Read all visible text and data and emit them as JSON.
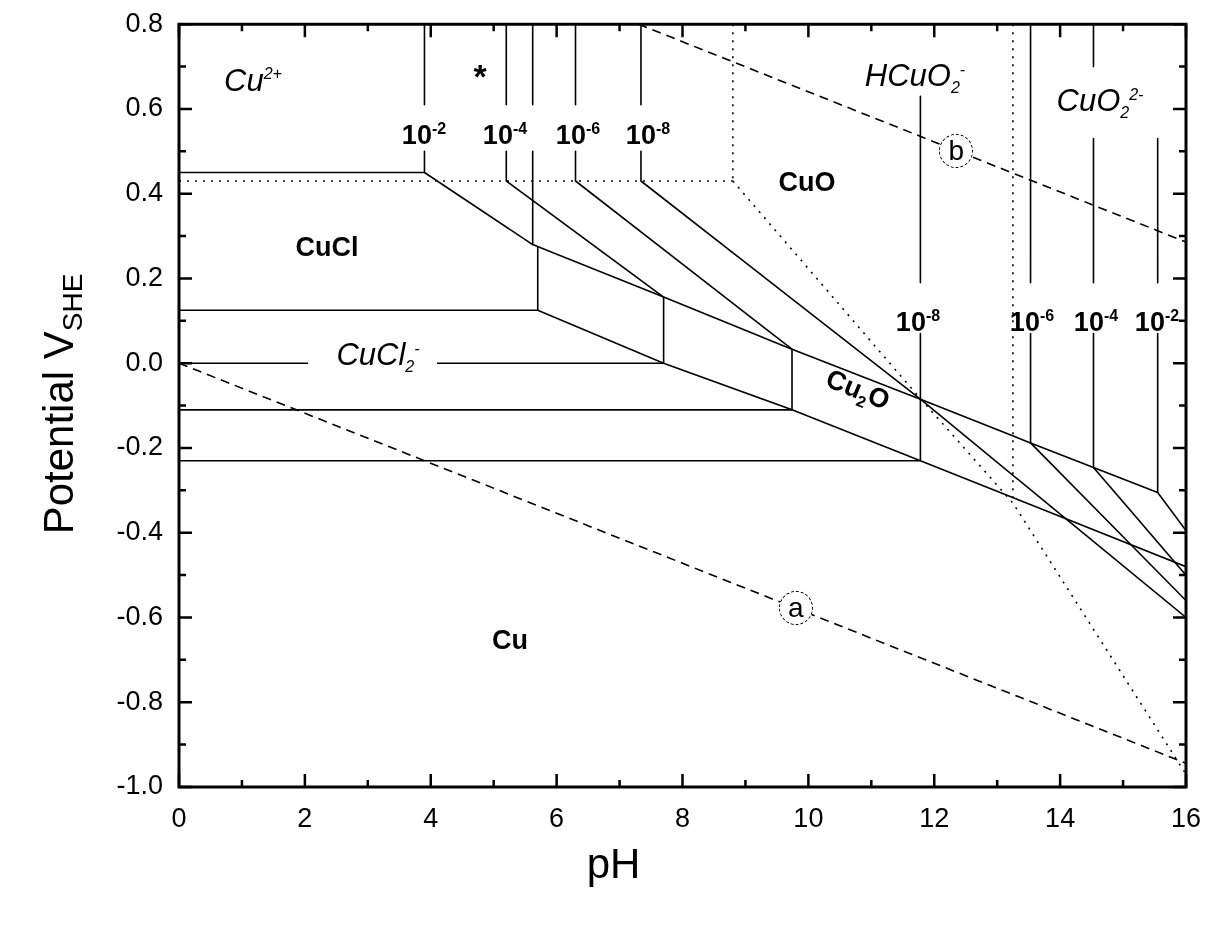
{
  "chart_data": {
    "type": "line",
    "xlabel": "pH",
    "ylabel": "Potential V$_{SHE}$",
    "xlim": [
      0,
      16
    ],
    "ylim": [
      -1.0,
      0.8
    ],
    "xticks": [
      0,
      {
        "value": 1,
        "label": null
      },
      2,
      {
        "value": 3,
        "label": null
      },
      4,
      {
        "value": 5,
        "label": null
      },
      6,
      {
        "value": 7,
        "label": null
      },
      8,
      {
        "value": 9,
        "label": null
      },
      10,
      {
        "value": 11,
        "label": null
      },
      12,
      {
        "value": 13,
        "label": null
      },
      14,
      {
        "value": 15,
        "label": null
      },
      16
    ],
    "yticks": [
      {
        "value": -1.0,
        "label": "-1.0"
      },
      {
        "value": -0.9,
        "label": null
      },
      -0.8,
      {
        "value": -0.7,
        "label": null
      },
      -0.6,
      {
        "value": -0.5,
        "label": null
      },
      -0.4,
      {
        "value": -0.3,
        "label": null
      },
      -0.2,
      {
        "value": -0.1,
        "label": null
      },
      {
        "value": 0,
        "label": "0.0"
      },
      {
        "value": 0.1,
        "label": null
      },
      0.2,
      {
        "value": 0.3,
        "label": null
      },
      0.4,
      {
        "value": 0.5,
        "label": null
      },
      0.6,
      {
        "value": 0.7,
        "label": null
      },
      0.8
    ],
    "grid": false,
    "legend": false,
    "marker": "none",
    "series": [
      {
        "color": "#000000",
        "line_style": "solid",
        "x": [
          0,
          3.9,
          5.62,
          7.7,
          9.74,
          11.78,
          13.53,
          14.53,
          15.55,
          16
        ],
        "values": [
          0.45,
          0.45,
          0.28,
          0.156,
          0.033,
          -0.085,
          -0.188,
          -0.246,
          -0.305,
          -0.395
        ]
      },
      {
        "color": "#000000",
        "line_style": "solid",
        "x": [
          0,
          5.7,
          7.7,
          9.74,
          11.78,
          16
        ],
        "values": [
          0.125,
          0.125,
          0,
          -0.11,
          -0.23,
          -0.48
        ]
      },
      {
        "color": "#000000",
        "line_style": "solid",
        "x": [
          0,
          2.05,
          null,
          4.1,
          7.7
        ],
        "values": [
          0,
          0,
          null,
          0,
          0
        ]
      },
      {
        "color": "#000000",
        "line_style": "solid",
        "x": [
          0,
          9.74
        ],
        "values": [
          -0.11,
          -0.11
        ]
      },
      {
        "color": "#000000",
        "line_style": "solid",
        "x": [
          0,
          11.78
        ],
        "values": [
          -0.23,
          -0.23
        ]
      },
      {
        "color": "#000000",
        "line_style": "solid",
        "x": [
          3.9,
          3.9,
          null,
          3.9,
          3.9
        ],
        "values": [
          0.8,
          0.61,
          null,
          0.5,
          0.45
        ]
      },
      {
        "color": "#000000",
        "line_style": "solid",
        "x": [
          5.2,
          5.2,
          null,
          5.2,
          5.2
        ],
        "values": [
          0.8,
          0.61,
          null,
          0.5,
          0.43
        ]
      },
      {
        "color": "#000000",
        "line_style": "solid",
        "x": [
          5.62,
          5.62,
          null,
          5.62,
          5.62
        ],
        "values": [
          0.8,
          0.61,
          null,
          0.5,
          0.28
        ]
      },
      {
        "color": "#000000",
        "line_style": "solid",
        "x": [
          5.7,
          5.7
        ],
        "values": [
          0.275,
          0.125
        ]
      },
      {
        "color": "#000000",
        "line_style": "solid",
        "x": [
          6.3,
          6.3,
          null,
          6.3,
          6.3
        ],
        "values": [
          0.8,
          0.61,
          null,
          0.5,
          0.43
        ]
      },
      {
        "color": "#000000",
        "line_style": "solid",
        "x": [
          7.34,
          7.34,
          null,
          7.34,
          7.34
        ],
        "values": [
          0.8,
          0.61,
          null,
          0.5,
          0.43
        ]
      },
      {
        "color": "#000000",
        "line_style": "solid",
        "x": [
          5.2,
          7.7
        ],
        "values": [
          0.43,
          0.156
        ]
      },
      {
        "color": "#000000",
        "line_style": "solid",
        "x": [
          6.3,
          9.74
        ],
        "values": [
          0.43,
          0.033
        ]
      },
      {
        "color": "#000000",
        "line_style": "solid",
        "x": [
          7.34,
          11.78,
          16
        ],
        "values": [
          0.43,
          -0.085,
          -0.6
        ]
      },
      {
        "color": "#000000",
        "line_style": "solid",
        "x": [
          7.7,
          7.7
        ],
        "values": [
          0.156,
          0
        ]
      },
      {
        "color": "#000000",
        "line_style": "solid",
        "x": [
          9.74,
          9.74
        ],
        "values": [
          0.033,
          -0.11
        ]
      },
      {
        "color": "#000000",
        "line_style": "solid",
        "x": [
          11.78,
          11.78,
          null,
          11.78,
          11.78
        ],
        "values": [
          0.63,
          0.19,
          null,
          0.07,
          -0.23
        ]
      },
      {
        "color": "#000000",
        "line_style": "solid",
        "x": [
          13.53,
          13.53,
          null,
          13.53,
          13.53
        ],
        "values": [
          0.8,
          0.19,
          null,
          0.07,
          -0.188
        ]
      },
      {
        "color": "#000000",
        "line_style": "solid",
        "x": [
          14.53,
          14.53,
          null,
          14.53,
          14.53,
          null,
          14.53,
          14.53
        ],
        "values": [
          0.8,
          0.7,
          null,
          0.53,
          0.19,
          null,
          0.07,
          -0.246
        ]
      },
      {
        "color": "#000000",
        "line_style": "solid",
        "x": [
          15.55,
          15.55,
          null,
          15.55,
          15.55
        ],
        "values": [
          0.53,
          0.19,
          null,
          0.07,
          -0.305
        ]
      },
      {
        "color": "#000000",
        "line_style": "solid",
        "x": [
          13.53,
          16
        ],
        "values": [
          -0.188,
          -0.56
        ]
      },
      {
        "color": "#000000",
        "line_style": "solid",
        "x": [
          14.53,
          16
        ],
        "values": [
          -0.246,
          -0.5
        ]
      },
      {
        "color": "#000000",
        "line_style": "dotted",
        "x": [
          0,
          8.8
        ],
        "values": [
          0.43,
          0.43
        ]
      },
      {
        "color": "#000000",
        "line_style": "dotted",
        "x": [
          8.8,
          8.8
        ],
        "values": [
          0.8,
          0.43
        ]
      },
      {
        "color": "#000000",
        "line_style": "dotted",
        "x": [
          8.8,
          11.7,
          13.25,
          16
        ],
        "values": [
          0.43,
          -0.07,
          -0.33,
          -0.97
        ]
      },
      {
        "color": "#000000",
        "line_style": "dotted",
        "x": [
          13.25,
          13.25
        ],
        "values": [
          0.8,
          -0.33
        ]
      },
      {
        "color": "#000000",
        "line_style": "dashed",
        "x": [
          0,
          16
        ],
        "values": [
          0,
          -0.944
        ]
      },
      {
        "color": "#000000",
        "line_style": "dashed",
        "x": [
          7.3,
          16
        ],
        "values": [
          0.8,
          0.286
        ]
      }
    ],
    "annotations": [
      "Cu$^{2+}$",
      "*",
      "10$^{-2}$",
      "10$^{-4}$",
      "10$^{-6}$",
      "10$^{-8}$",
      "CuCl",
      "CuCl$_{2}$$^{-}$",
      "CuO",
      "Cu$_{2}$O",
      "HCuO$_{2}$$^{-}$",
      "CuO$_{2}$$^{2-}$",
      {
        "text": "b",
        "x": 12.35,
        "y": 0.5
      },
      "10$^{-8}$",
      "10$^{-6}$",
      "10$^{-4}$",
      "10$^{-2}$",
      {
        "text": "a",
        "x": 9.8,
        "y": -0.578
      },
      "Cu"
    ]
  }
}
